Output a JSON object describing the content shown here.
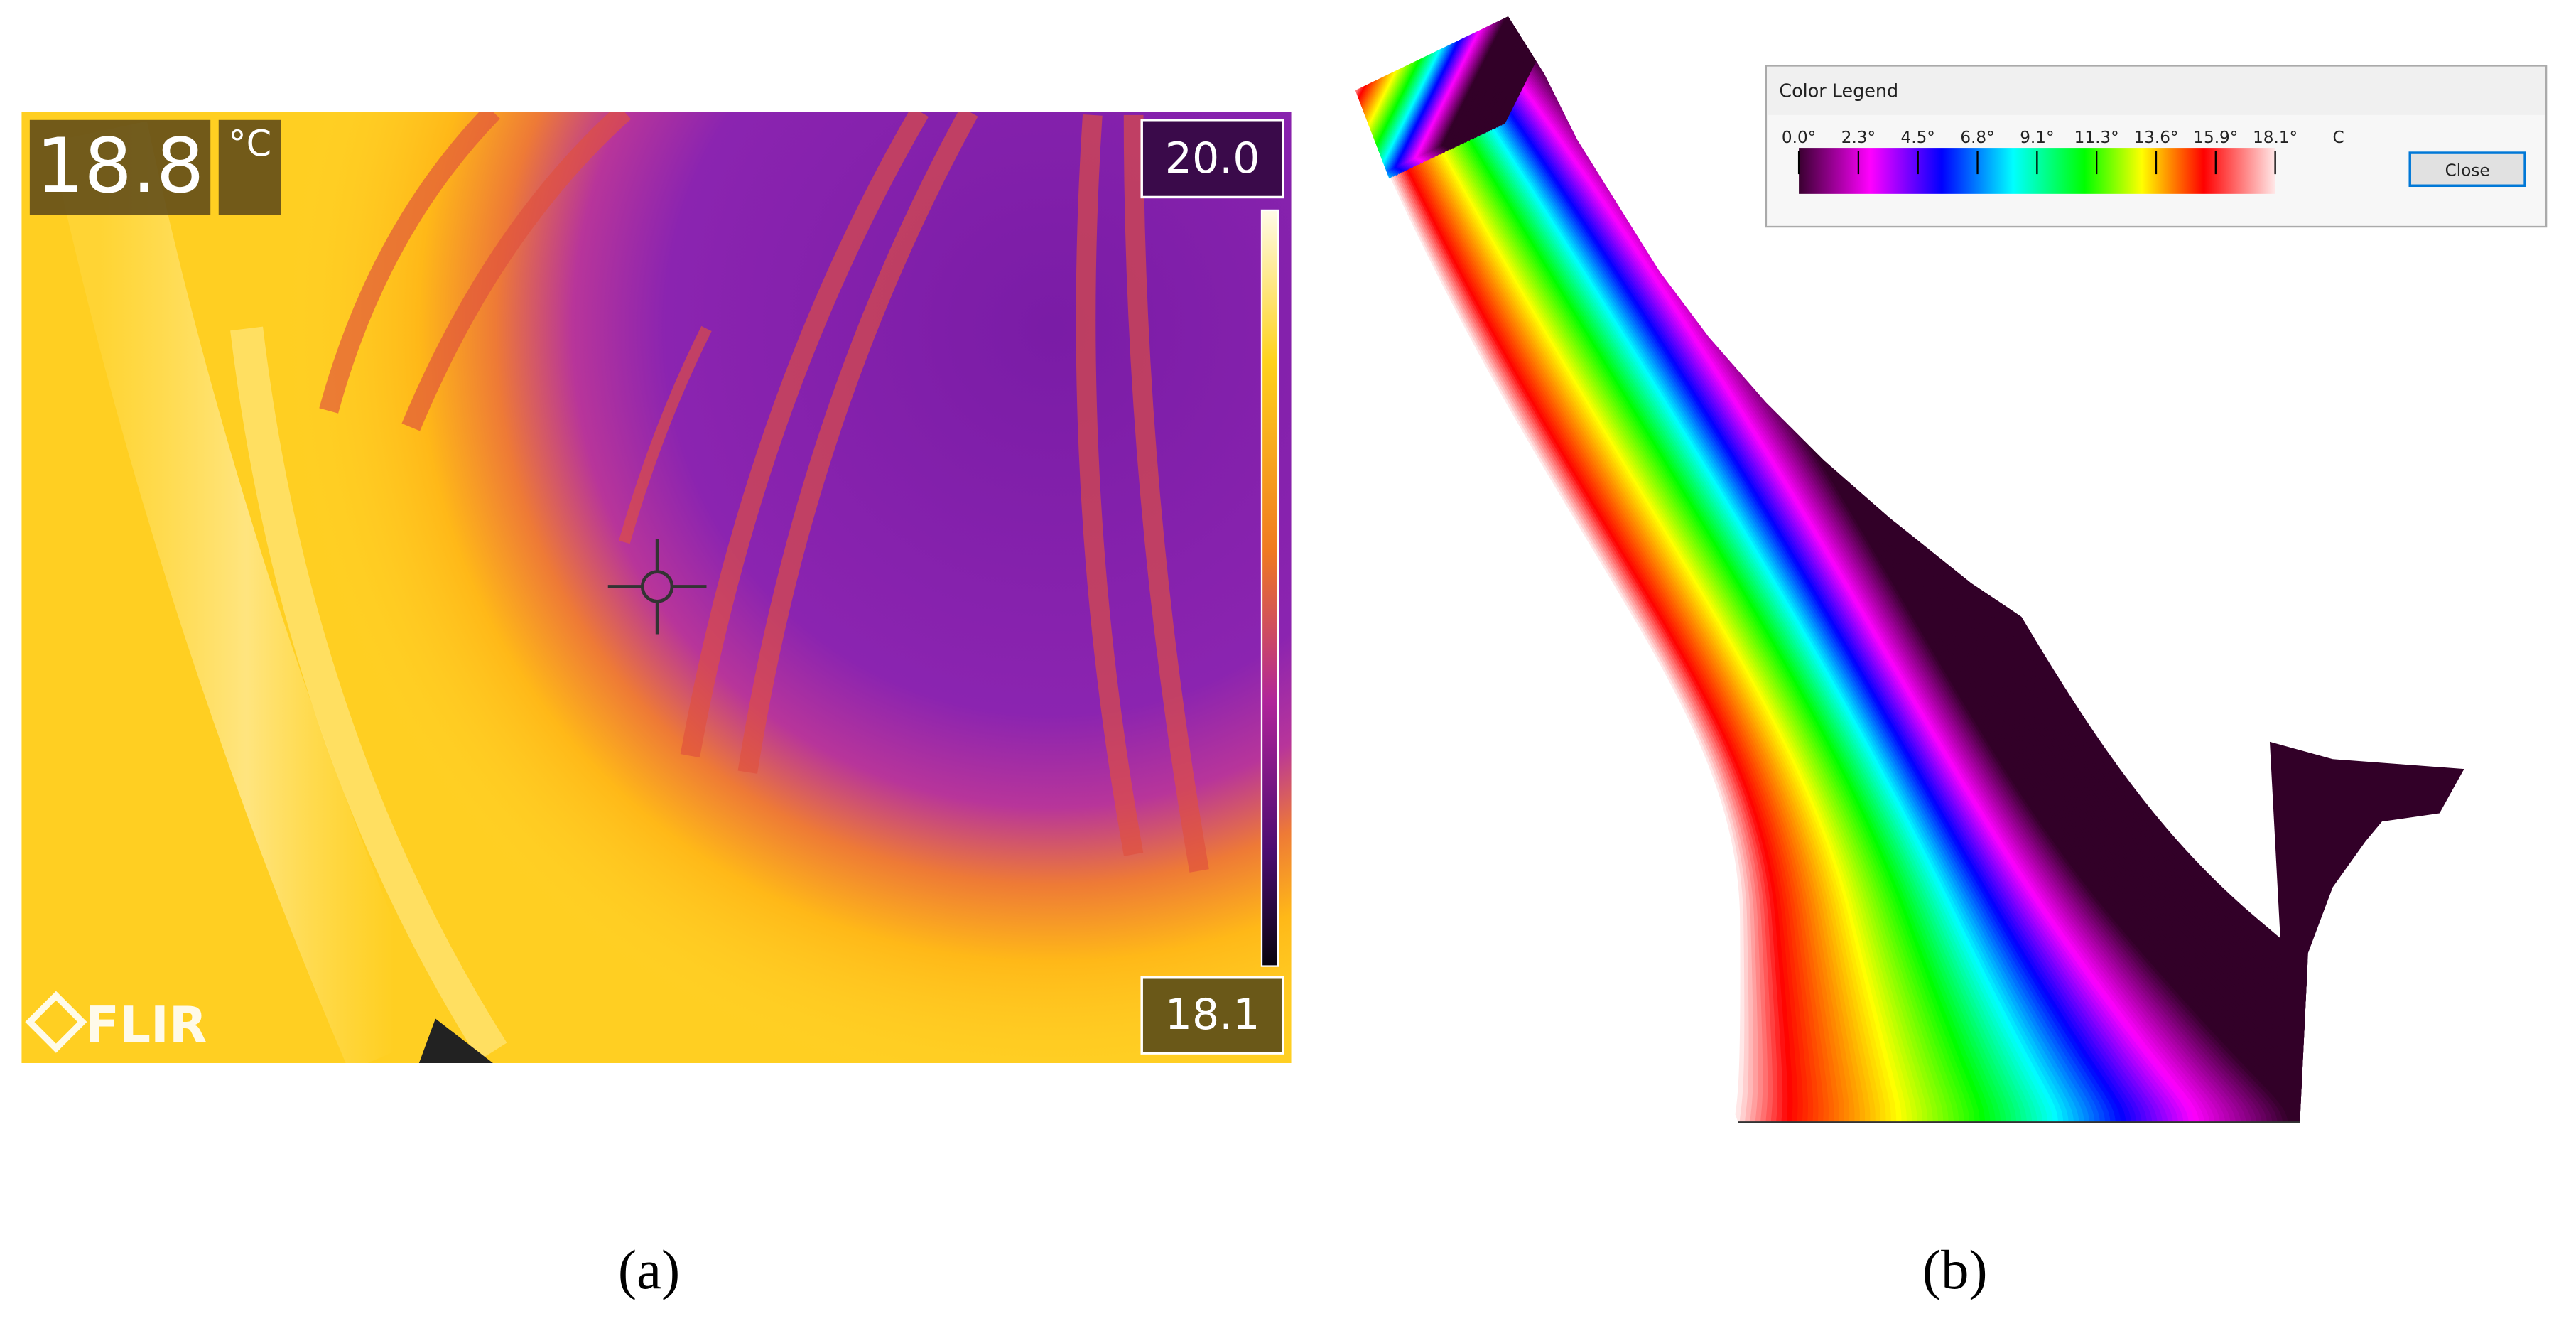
{
  "panel_a": {
    "readout": "18.8",
    "unit": "°C",
    "scale_max": "20.0",
    "scale_min": "18.1",
    "logo": "FLIR",
    "caption": "(a)"
  },
  "panel_b": {
    "legend": {
      "title": "Color Legend",
      "tick_labels": [
        "0.0°",
        "2.3°",
        "4.5°",
        "6.8°",
        "9.1°",
        "11.3°",
        "13.6°",
        "15.9°",
        "18.1°"
      ],
      "unit": "C",
      "button": "Close"
    },
    "caption": "(b)"
  }
}
